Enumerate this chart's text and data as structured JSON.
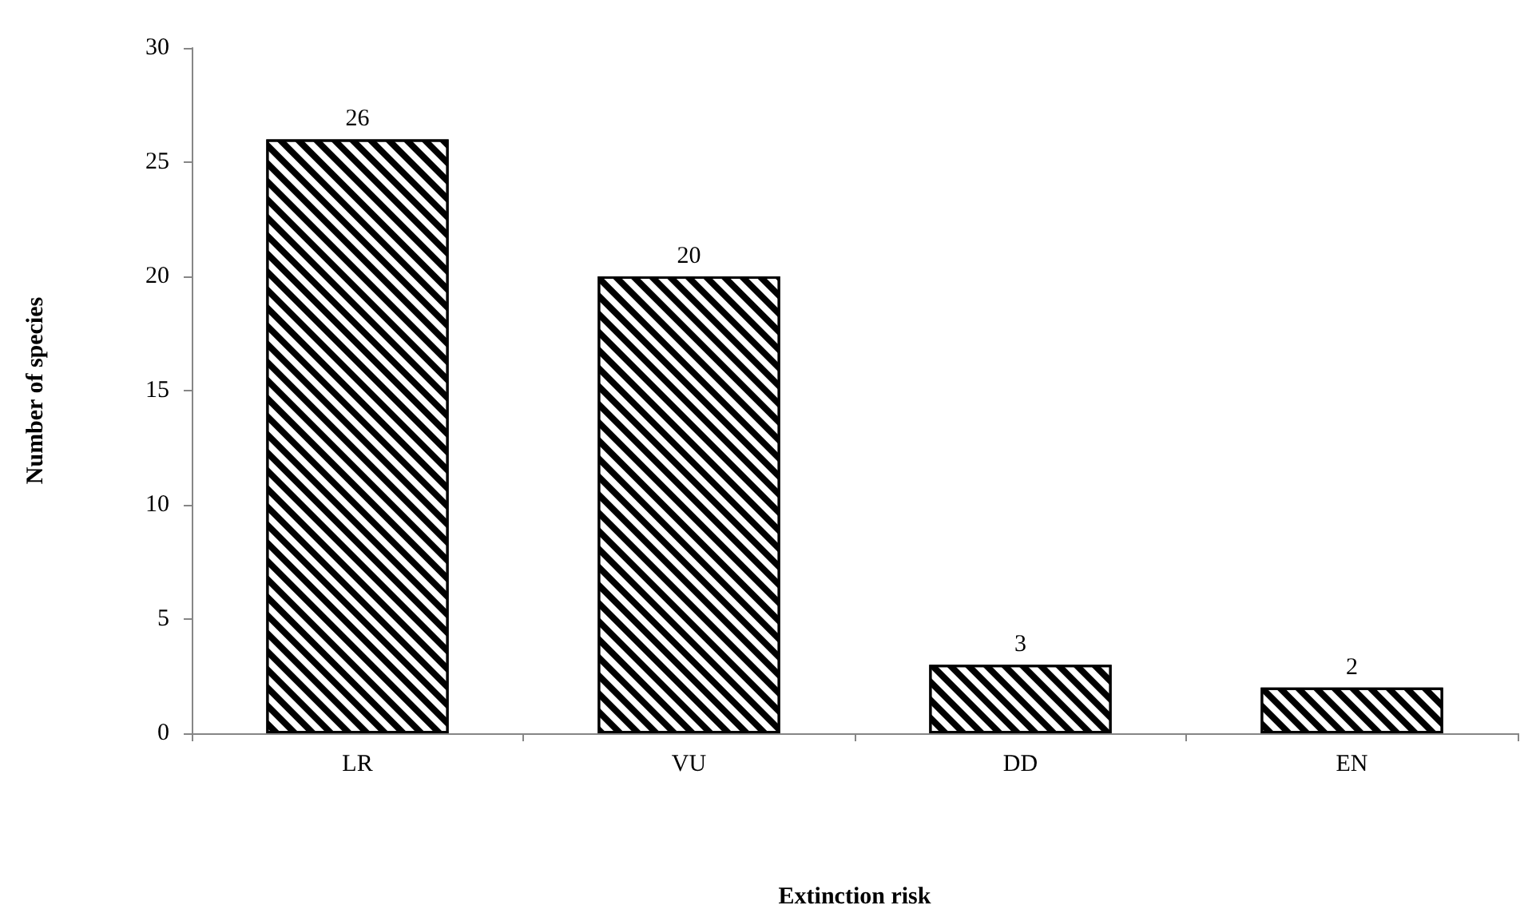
{
  "chart_data": {
    "type": "bar",
    "xlabel": "Extinction risk",
    "ylabel": "Number of species",
    "categories": [
      "LR",
      "VU",
      "DD",
      "EN"
    ],
    "values": [
      26,
      20,
      3,
      2
    ],
    "color": "#000000",
    "ylim": [
      0,
      30
    ],
    "yticks": [
      0,
      5,
      10,
      15,
      20,
      25,
      30
    ],
    "data_labels": true,
    "grid": false
  }
}
